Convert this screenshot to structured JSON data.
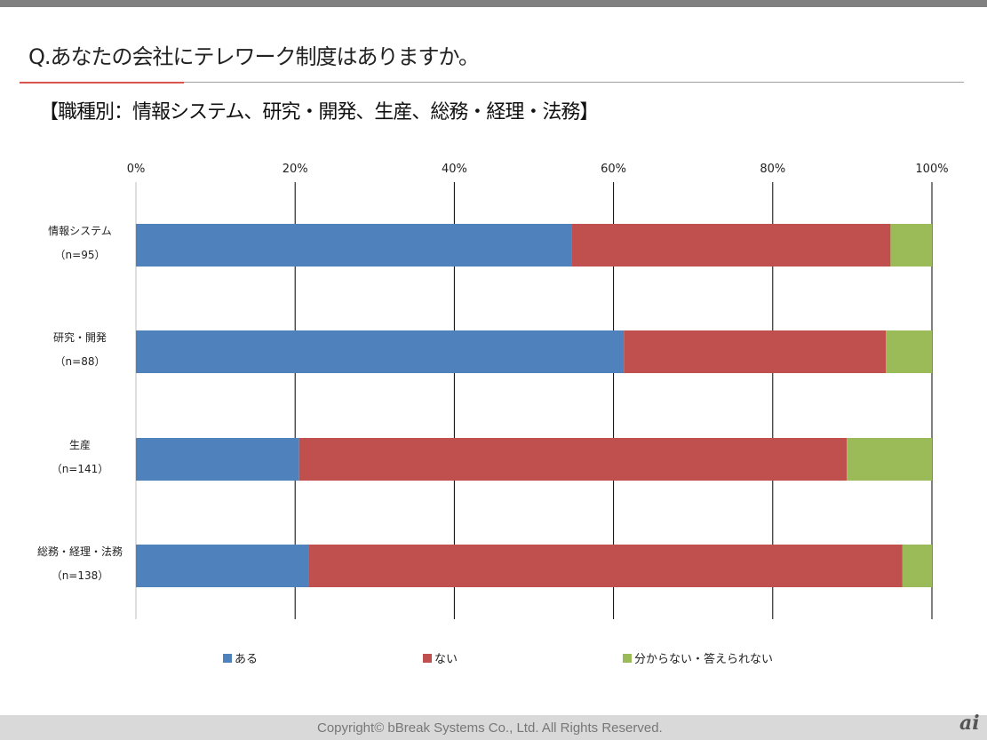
{
  "header": {
    "title": "Q.あなたの会社にテレワーク制度はありますか。",
    "subtitle": "【職種別：情報システム、研究・開発、生産、総務・経理・法務】"
  },
  "footer": {
    "copyright": "Copyright©   bBreak Systems Co., Ltd.  All Rights Reserved.",
    "logo": "ai"
  },
  "chart_data": {
    "type": "bar",
    "orientation": "horizontal-stacked-100",
    "categories": [
      {
        "name": "情報システム",
        "n": "（n=95）"
      },
      {
        "name": "研究・開発",
        "n": "（n=88）"
      },
      {
        "name": "生産",
        "n": "（n=141）"
      },
      {
        "name": "総務・経理・法務",
        "n": "（n=138）"
      }
    ],
    "series": [
      {
        "name": "ある",
        "color": "#4f81bd",
        "values": [
          54.7,
          61.3,
          20.5,
          21.7
        ]
      },
      {
        "name": "ない",
        "color": "#c0504d",
        "values": [
          40.1,
          32.9,
          68.8,
          74.6
        ]
      },
      {
        "name": "分からない・答えられない",
        "color": "#9bbb59",
        "values": [
          5.2,
          5.8,
          10.7,
          3.7
        ]
      }
    ],
    "xticks": [
      "0%",
      "20%",
      "40%",
      "60%",
      "80%",
      "100%"
    ],
    "xlim": [
      0,
      100
    ],
    "grid": true,
    "legend": "bottom"
  }
}
